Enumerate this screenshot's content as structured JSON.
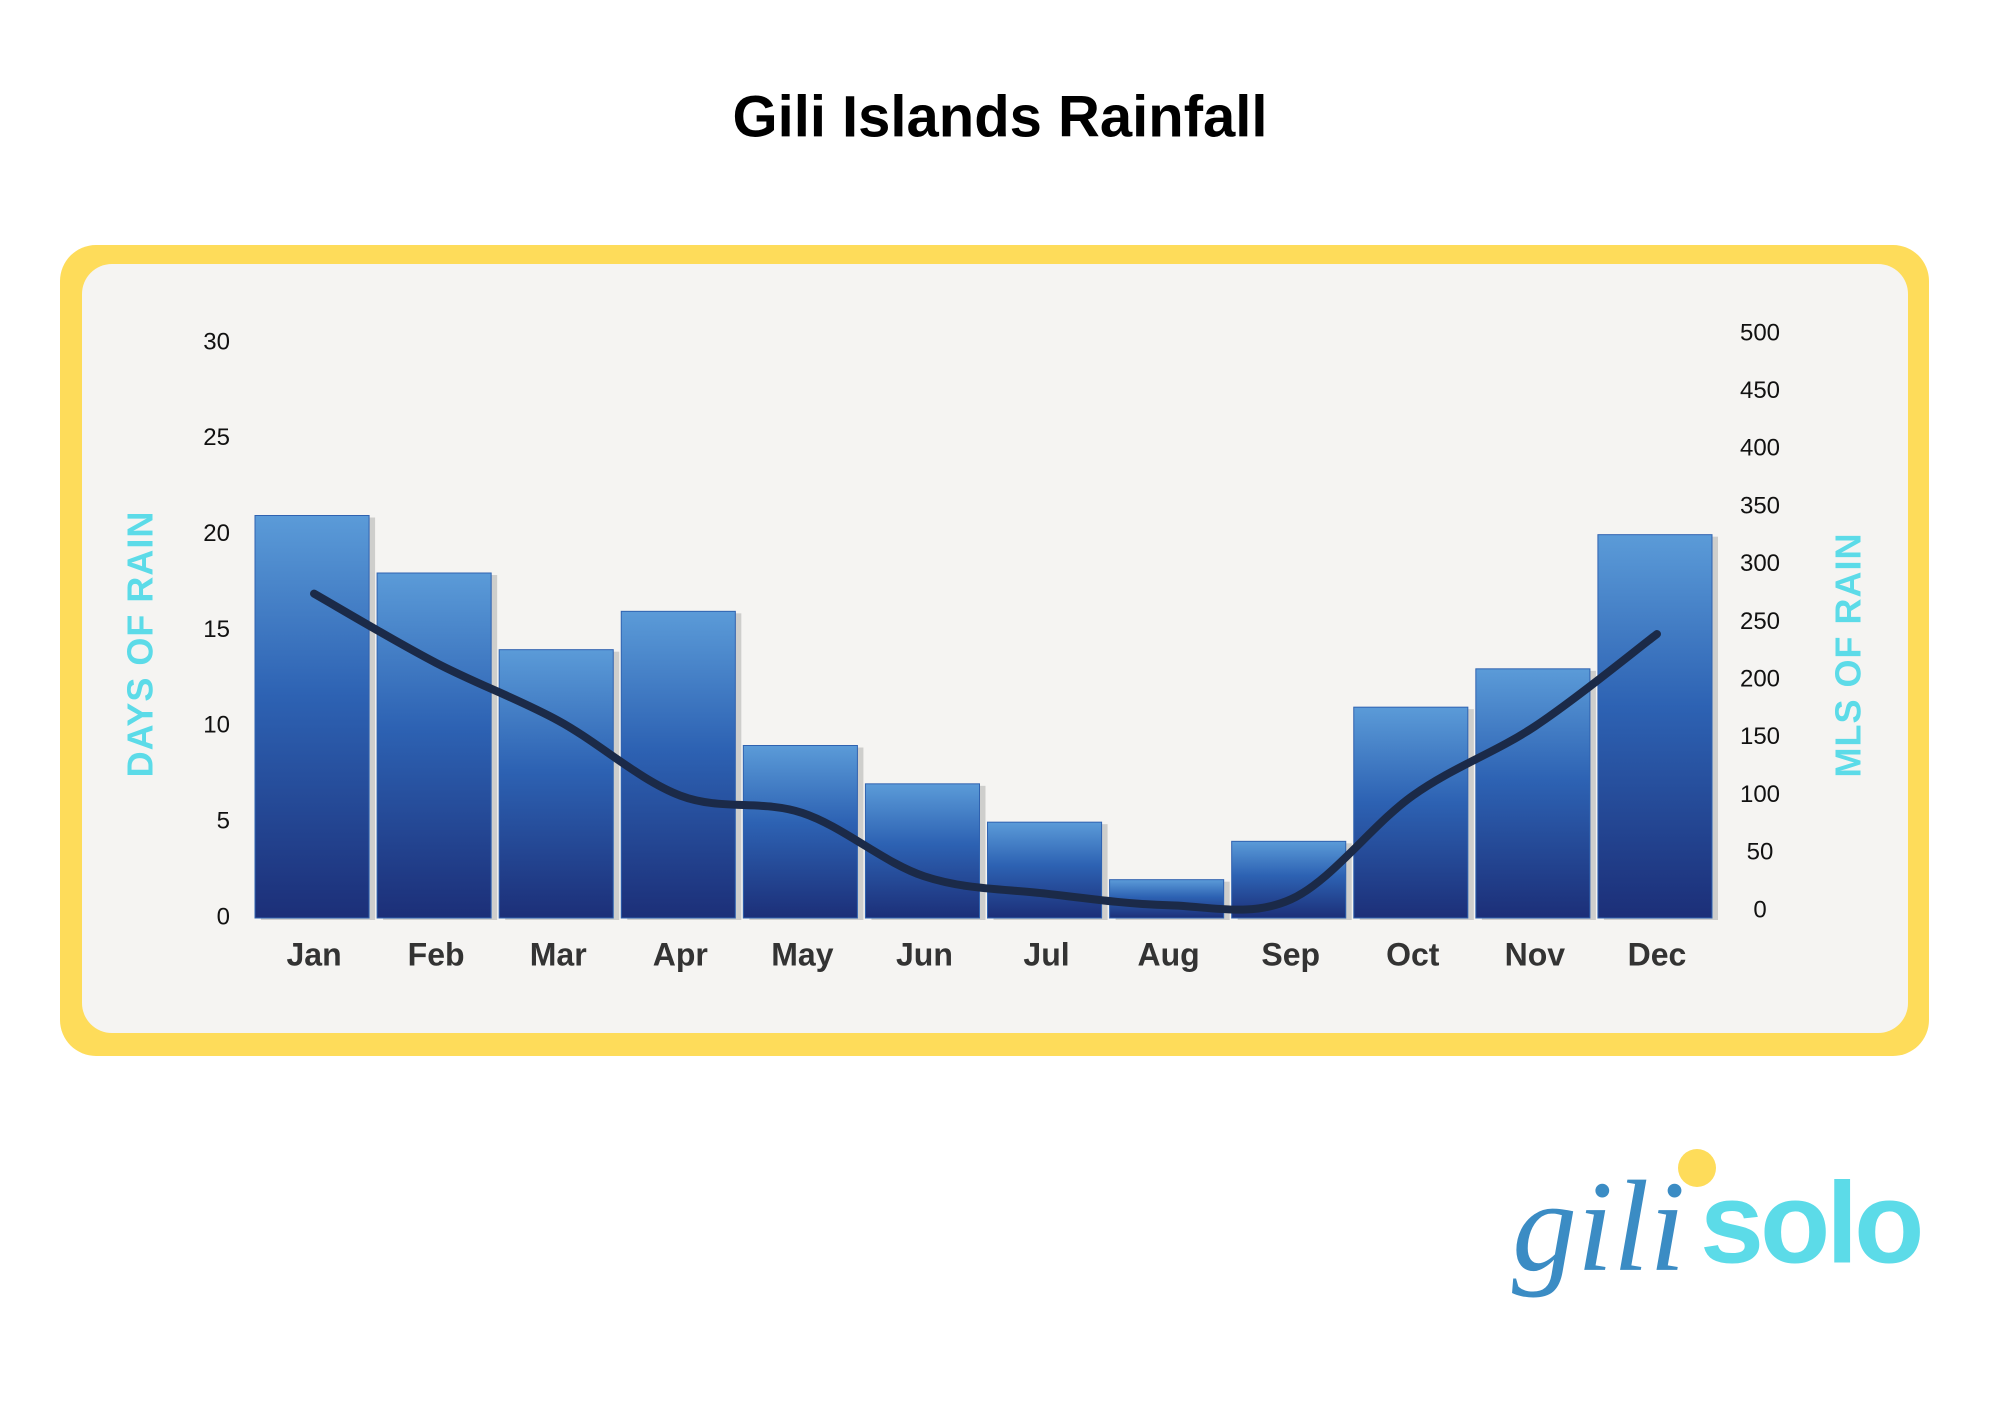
{
  "chart_data": {
    "type": "bar",
    "title": "Gili Islands Rainfall",
    "categories": [
      "Jan",
      "Feb",
      "Mar",
      "Apr",
      "May",
      "Jun",
      "Jul",
      "Aug",
      "Sep",
      "Oct",
      "Nov",
      "Dec"
    ],
    "series": [
      {
        "type": "bar",
        "color": "#2f62b0",
        "values": [
          21,
          18,
          14,
          16,
          9,
          7,
          5,
          2,
          4,
          11,
          13,
          20
        ]
      },
      {
        "type": "line",
        "axis": "y2",
        "color": "#1b2a48",
        "values": [
          275,
          215,
          165,
          100,
          85,
          30,
          15,
          5,
          10,
          100,
          160,
          240
        ]
      }
    ],
    "y_label": "DAYS OF RAIN",
    "y2_label": "MLS OF RAIN",
    "ylim": [
      0,
      30
    ],
    "yticks": [
      0,
      5,
      10,
      15,
      20,
      25,
      30
    ],
    "y2lim": [
      0,
      500
    ],
    "y2ticks": [
      0,
      50,
      100,
      150,
      200,
      250,
      300,
      350,
      400,
      450,
      500
    ]
  },
  "logo": {
    "first": "gili",
    "second": "solo"
  }
}
